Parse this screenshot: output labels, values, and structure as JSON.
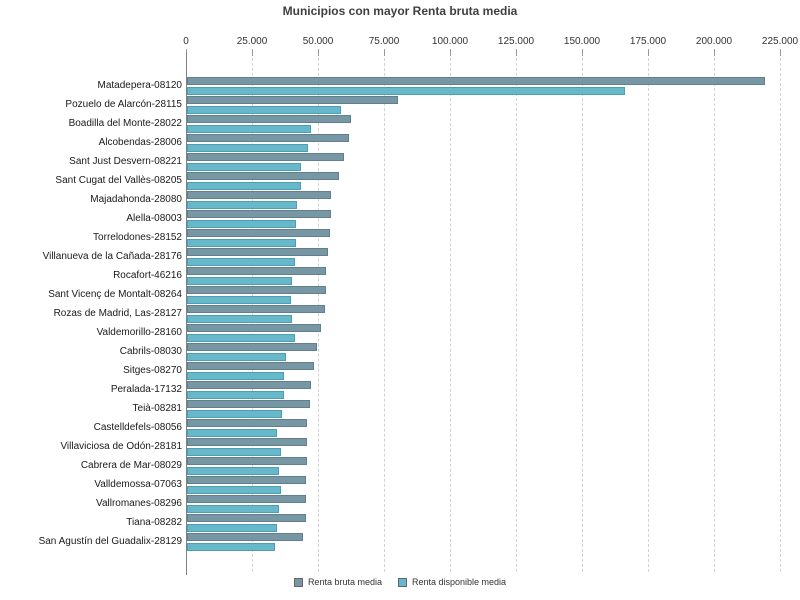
{
  "title": "Municipios con mayor Renta bruta media",
  "chart_data": {
    "type": "bar",
    "orientation": "horizontal",
    "title": "Municipios con mayor Renta bruta media",
    "xlabel": "",
    "ylabel": "",
    "axis": {
      "position": "top",
      "min": 0,
      "max": 225000,
      "tick_interval": 25000,
      "tick_labels": [
        "0",
        "25.000",
        "50.000",
        "75.000",
        "100.000",
        "125.000",
        "150.000",
        "175.000",
        "200.000",
        "225.000"
      ]
    },
    "grid": "vertical-dashed",
    "legend_position": "bottom",
    "categories": [
      "Matadepera-08120",
      "Pozuelo de Alarcón-28115",
      "Boadilla del Monte-28022",
      "Alcobendas-28006",
      "Sant Just Desvern-08221",
      "Sant Cugat del Vallès-08205",
      "Majadahonda-28080",
      "Alella-08003",
      "Torrelodones-28152",
      "Villanueva de la Cañada-28176",
      "Rocafort-46216",
      "Sant Vicenç de Montalt-08264",
      "Rozas de Madrid, Las-28127",
      "Valdemorillo-28160",
      "Cabrils-08030",
      "Sitges-08270",
      "Peralada-17132",
      "Teià-08281",
      "Castelldefels-08056",
      "Villaviciosa de Odón-28181",
      "Cabrera de Mar-08029",
      "Valldemossa-07063",
      "Vallromanes-08296",
      "Tiana-08282",
      "San Agustín del Guadalix-28129"
    ],
    "series": [
      {
        "name": "Renta bruta media",
        "color": "#7897a5",
        "border_color": "#627f8d",
        "values": [
          219000,
          79800,
          62200,
          61200,
          59300,
          57700,
          54600,
          54500,
          54200,
          53300,
          52800,
          52500,
          52100,
          50800,
          49100,
          48200,
          47000,
          46500,
          45600,
          45500,
          45300,
          45200,
          45100,
          44900,
          44100
        ]
      },
      {
        "name": "Renta disponible media",
        "color": "#68b8cc",
        "border_color": "#4e9db1",
        "values": [
          166000,
          58500,
          46800,
          46000,
          43300,
          43000,
          41500,
          41400,
          41200,
          41000,
          39800,
          39500,
          39700,
          41000,
          37600,
          36700,
          36900,
          35800,
          34200,
          35700,
          35000,
          35600,
          34700,
          34200,
          33500
        ]
      }
    ]
  }
}
